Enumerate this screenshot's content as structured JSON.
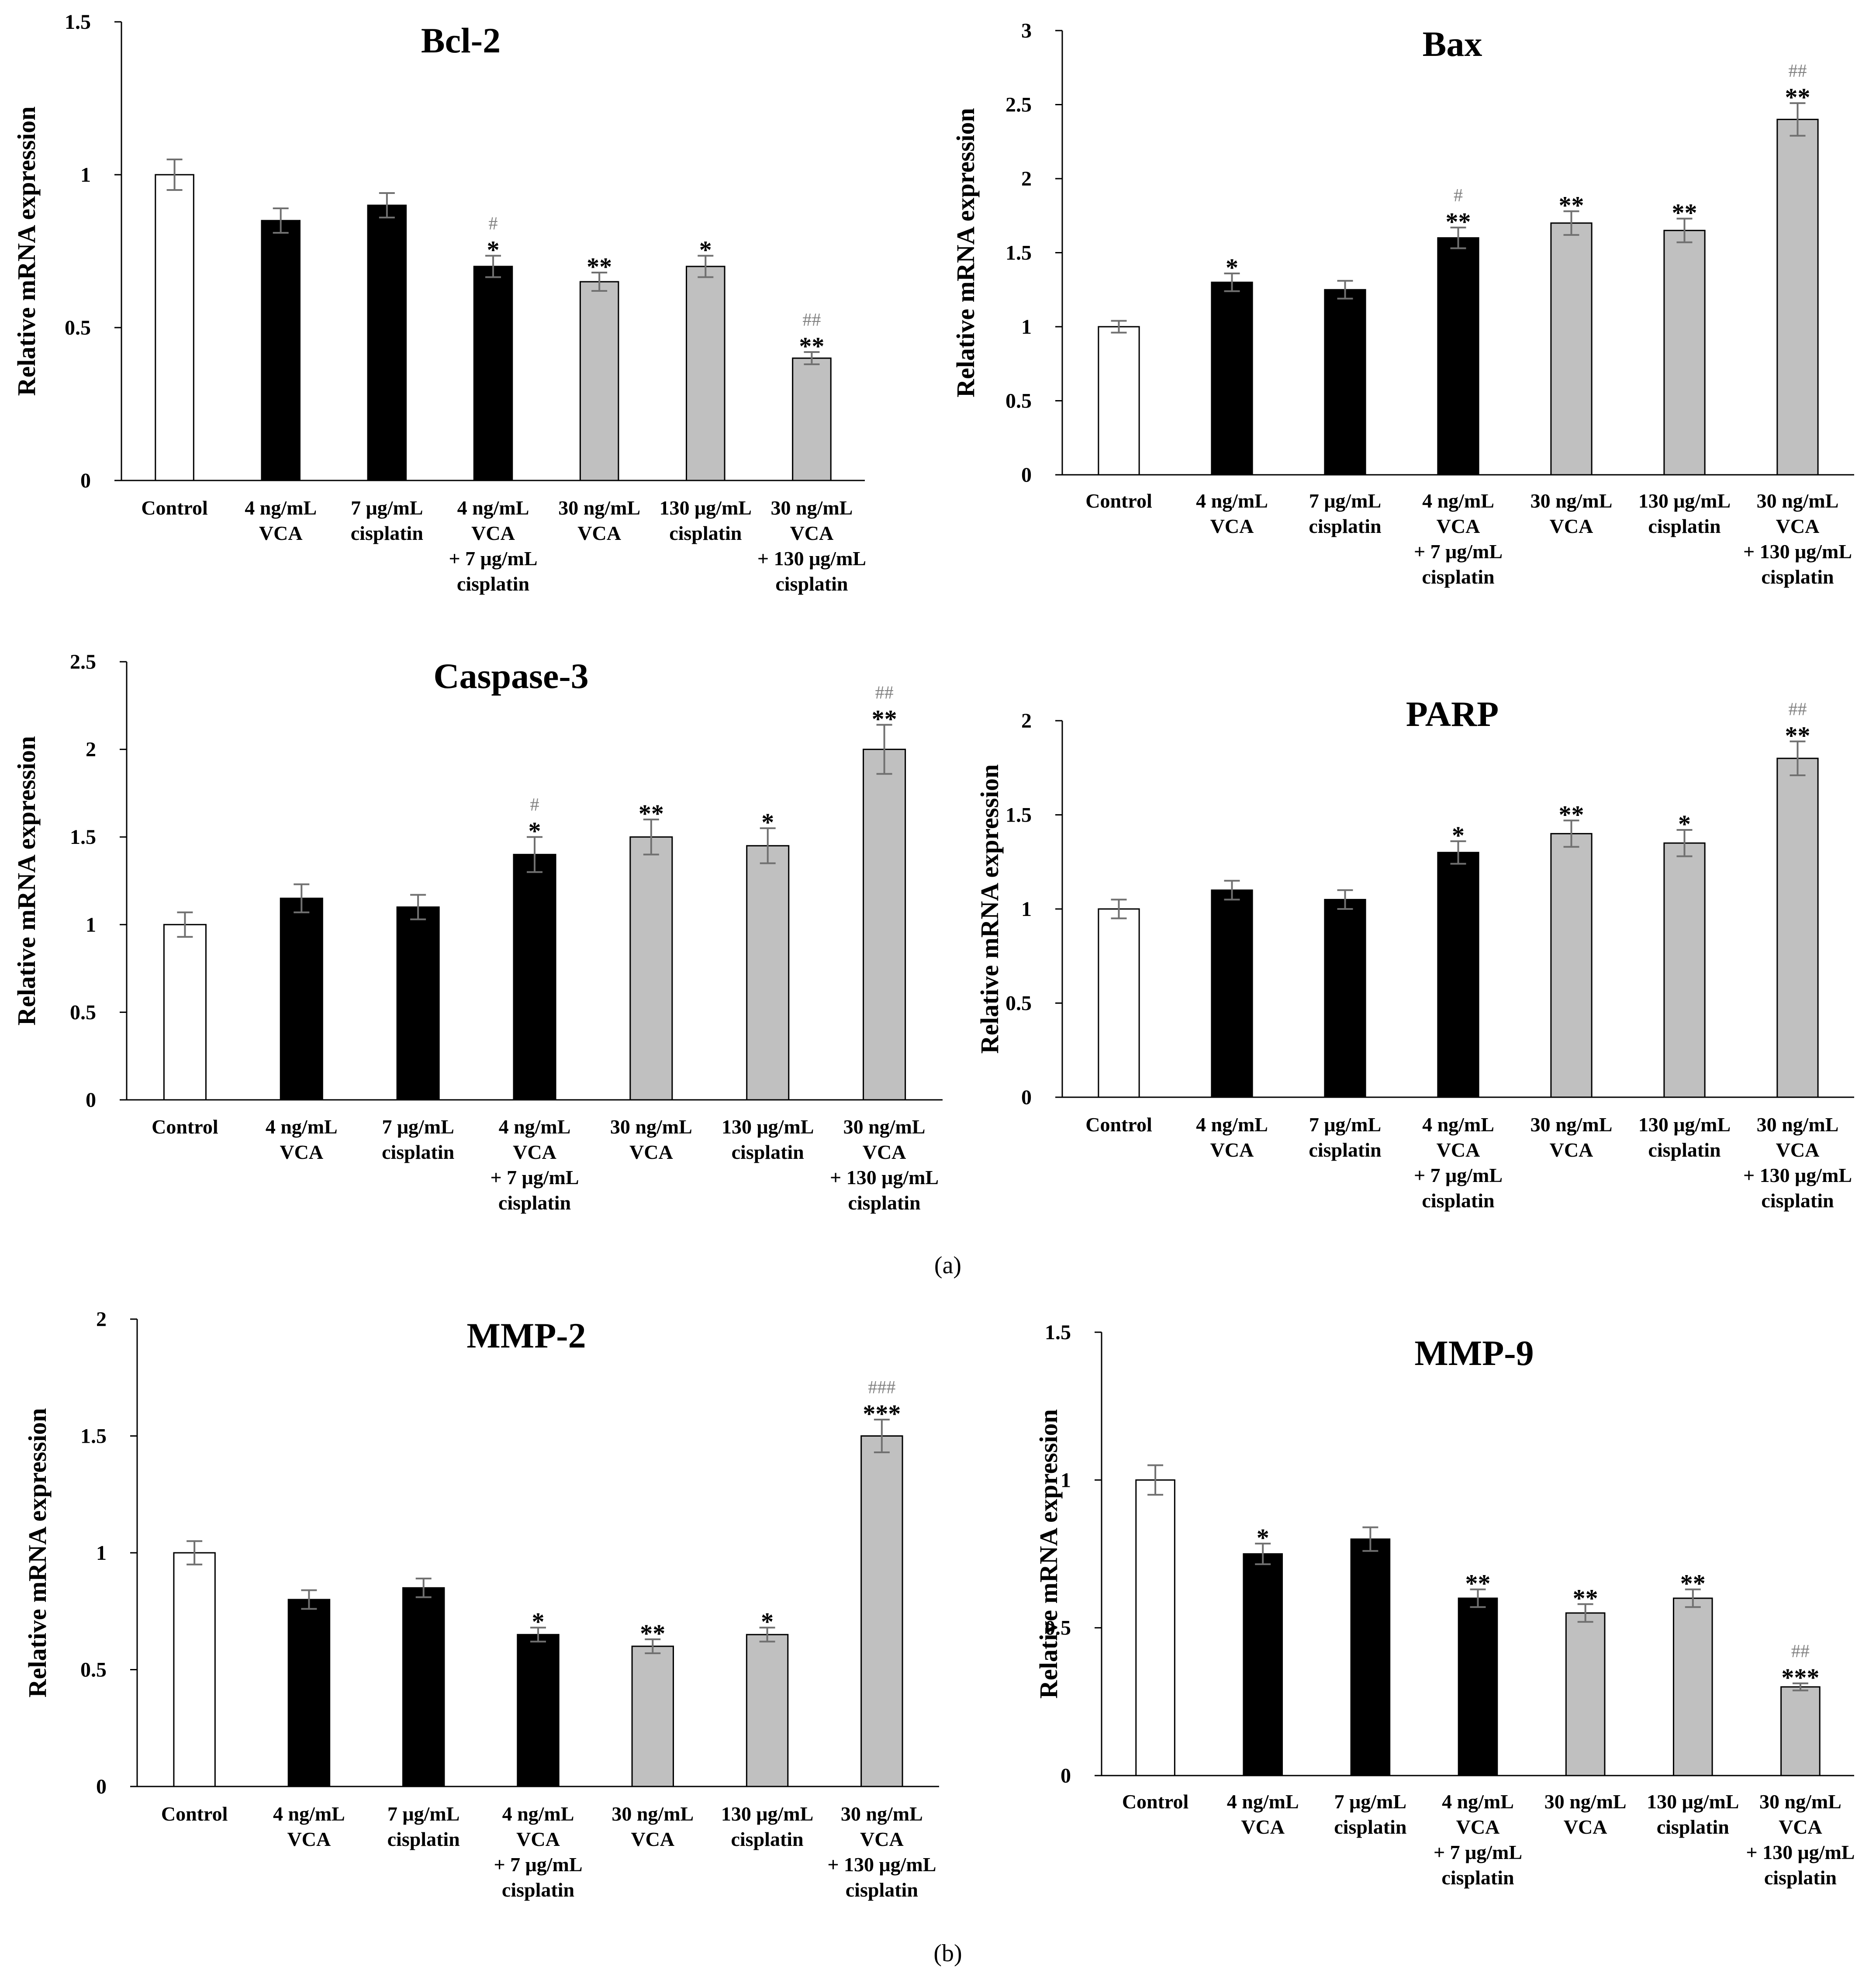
{
  "figure": {
    "panel_labels": [
      "(a)",
      "(b)"
    ]
  },
  "colors": {
    "control": "#ffffff",
    "low_dose": "#000000",
    "high_dose": "#c0c0c0",
    "error_bar": "#707070",
    "hash": "#808080"
  },
  "categories": [
    [
      "Control"
    ],
    [
      "4 ng/mL",
      "VCA"
    ],
    [
      "7 μg/mL",
      "cisplatin"
    ],
    [
      "4 ng/mL",
      "VCA",
      "+ 7 μg/mL",
      "cisplatin"
    ],
    [
      "30 ng/mL",
      "VCA"
    ],
    [
      "130 μg/mL",
      "cisplatin"
    ],
    [
      "30 ng/mL",
      "VCA",
      "+ 130 μg/mL",
      "cisplatin"
    ]
  ],
  "bar_groups": [
    "control",
    "low_dose",
    "low_dose",
    "low_dose",
    "high_dose",
    "high_dose",
    "high_dose"
  ],
  "chart_data": [
    {
      "type": "bar",
      "title": "Bcl-2",
      "ylabel": "Relative mRNA expression",
      "ylim": [
        0,
        1.5
      ],
      "yticks": [
        0,
        0.5,
        1,
        1.5
      ],
      "ytick_labels": [
        "0",
        "0.5",
        "1",
        "1.5"
      ],
      "values": [
        1.0,
        0.85,
        0.9,
        0.7,
        0.65,
        0.7,
        0.4
      ],
      "errors": [
        0.05,
        0.04,
        0.04,
        0.035,
        0.03,
        0.035,
        0.02
      ],
      "stars": [
        "",
        "",
        "",
        "*",
        "**",
        "*",
        "**"
      ],
      "hashes": [
        "",
        "",
        "",
        "#",
        "",
        "",
        "##"
      ]
    },
    {
      "type": "bar",
      "title": "Bax",
      "ylabel": "Relative mRNA expression",
      "ylim": [
        0,
        3
      ],
      "yticks": [
        0,
        0.5,
        1,
        1.5,
        2,
        2.5,
        3
      ],
      "ytick_labels": [
        "0",
        "0.5",
        "1",
        "1.5",
        "2",
        "2.5",
        "3"
      ],
      "values": [
        1.0,
        1.3,
        1.25,
        1.6,
        1.7,
        1.65,
        2.4
      ],
      "errors": [
        0.04,
        0.06,
        0.06,
        0.07,
        0.08,
        0.08,
        0.11
      ],
      "stars": [
        "",
        "*",
        "",
        "**",
        "**",
        "**",
        "**"
      ],
      "hashes": [
        "",
        "",
        "",
        "#",
        "",
        "",
        "##"
      ]
    },
    {
      "type": "bar",
      "title": "Caspase-3",
      "ylabel": "Relative mRNA expression",
      "ylim": [
        0,
        2.5
      ],
      "yticks": [
        0,
        0.5,
        1,
        1.5,
        2,
        2.5
      ],
      "ytick_labels": [
        "0",
        "0.5",
        "1",
        "1.5",
        "2",
        "2.5"
      ],
      "values": [
        1.0,
        1.15,
        1.1,
        1.4,
        1.5,
        1.45,
        2.0
      ],
      "errors": [
        0.07,
        0.08,
        0.07,
        0.1,
        0.1,
        0.1,
        0.14
      ],
      "stars": [
        "",
        "",
        "",
        "*",
        "**",
        "*",
        "**"
      ],
      "hashes": [
        "",
        "",
        "",
        "#",
        "",
        "",
        "##"
      ]
    },
    {
      "type": "bar",
      "title": "PARP",
      "ylabel": "Relative mRNA expression",
      "ylim": [
        0,
        2
      ],
      "yticks": [
        0,
        0.5,
        1,
        1.5,
        2
      ],
      "ytick_labels": [
        "0",
        "0.5",
        "1",
        "1.5",
        "2"
      ],
      "values": [
        1.0,
        1.1,
        1.05,
        1.3,
        1.4,
        1.35,
        1.8
      ],
      "errors": [
        0.05,
        0.05,
        0.05,
        0.06,
        0.07,
        0.07,
        0.09
      ],
      "stars": [
        "",
        "",
        "",
        "*",
        "**",
        "*",
        "**"
      ],
      "hashes": [
        "",
        "",
        "",
        "",
        "",
        "",
        "##"
      ]
    },
    {
      "type": "bar",
      "title": "MMP-2",
      "ylabel": "Relative mRNA expression",
      "ylim": [
        0,
        2
      ],
      "yticks": [
        0,
        0.5,
        1,
        1.5,
        2
      ],
      "ytick_labels": [
        "0",
        "0.5",
        "1",
        "1.5",
        "2"
      ],
      "values": [
        1.0,
        0.8,
        0.85,
        0.65,
        0.6,
        0.65,
        1.5
      ],
      "errors": [
        0.05,
        0.04,
        0.04,
        0.03,
        0.03,
        0.03,
        0.07
      ],
      "stars": [
        "",
        "",
        "",
        "*",
        "**",
        "*",
        "***"
      ],
      "hashes": [
        "",
        "",
        "",
        "",
        "",
        "",
        "###"
      ]
    },
    {
      "type": "bar",
      "title": "MMP-9",
      "ylabel": "Relative mRNA expression",
      "ylim": [
        0,
        1.5
      ],
      "yticks": [
        0,
        0.5,
        1,
        1.5
      ],
      "ytick_labels": [
        "0",
        "0.5",
        "1",
        "1.5"
      ],
      "values": [
        1.0,
        0.75,
        0.8,
        0.6,
        0.55,
        0.6,
        0.3
      ],
      "errors": [
        0.05,
        0.035,
        0.04,
        0.03,
        0.03,
        0.03,
        0.012
      ],
      "stars": [
        "",
        "*",
        "",
        "**",
        "**",
        "**",
        "***"
      ],
      "hashes": [
        "",
        "",
        "",
        "",
        "",
        "",
        "##"
      ]
    }
  ]
}
